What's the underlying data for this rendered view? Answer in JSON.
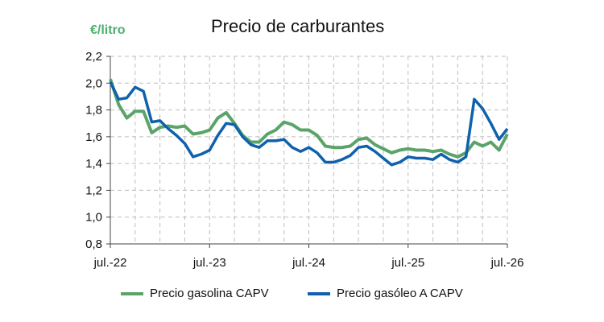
{
  "chart_data": {
    "type": "line",
    "title": "Precio de carburantes",
    "unit_label": "€/litro",
    "ylim": [
      0.8,
      2.2
    ],
    "y_ticks": [
      "0,8",
      "1,0",
      "1,2",
      "1,4",
      "1,6",
      "1,8",
      "2,0",
      "2,2"
    ],
    "x_ticks": [
      "jul.-22",
      "jul.-23",
      "jul.-24",
      "jul.-25",
      "jul.-26"
    ],
    "grid": true,
    "legend_position": "bottom",
    "x": [
      "2022-07",
      "2022-08",
      "2022-09",
      "2022-10",
      "2022-11",
      "2022-12",
      "2023-01",
      "2023-02",
      "2023-03",
      "2023-04",
      "2023-05",
      "2023-06",
      "2023-07",
      "2023-08",
      "2023-09",
      "2023-10",
      "2023-11",
      "2023-12",
      "2024-01",
      "2024-02",
      "2024-03",
      "2024-04",
      "2024-05",
      "2024-06",
      "2024-07",
      "2024-08",
      "2024-09",
      "2024-10",
      "2024-11",
      "2024-12",
      "2025-01",
      "2025-02",
      "2025-03",
      "2025-04",
      "2025-05",
      "2025-06",
      "2025-07",
      "2025-08",
      "2025-09",
      "2025-10",
      "2025-11",
      "2025-12",
      "2026-01",
      "2026-02",
      "2026-03",
      "2026-04",
      "2026-05",
      "2026-06",
      "2026-07"
    ],
    "series": [
      {
        "name": "Precio gasolina CAPV",
        "color": "#5aa469",
        "values": [
          2.03,
          1.84,
          1.74,
          1.79,
          1.79,
          1.63,
          1.67,
          1.68,
          1.67,
          1.68,
          1.62,
          1.63,
          1.65,
          1.74,
          1.78,
          1.7,
          1.61,
          1.56,
          1.56,
          1.62,
          1.65,
          1.71,
          1.69,
          1.65,
          1.65,
          1.61,
          1.53,
          1.52,
          1.52,
          1.53,
          1.58,
          1.59,
          1.54,
          1.51,
          1.48,
          1.5,
          1.51,
          1.5,
          1.5,
          1.49,
          1.5,
          1.47,
          1.45,
          1.48,
          1.56,
          1.53,
          1.56,
          1.5,
          1.62
        ]
      },
      {
        "name": "Precio gasóleo A CAPV",
        "color": "#1061ac",
        "values": [
          2.01,
          1.88,
          1.89,
          1.97,
          1.94,
          1.71,
          1.72,
          1.66,
          1.61,
          1.55,
          1.45,
          1.47,
          1.5,
          1.61,
          1.7,
          1.69,
          1.6,
          1.54,
          1.52,
          1.57,
          1.57,
          1.58,
          1.52,
          1.49,
          1.52,
          1.48,
          1.41,
          1.41,
          1.43,
          1.46,
          1.52,
          1.53,
          1.49,
          1.44,
          1.39,
          1.41,
          1.45,
          1.44,
          1.44,
          1.43,
          1.47,
          1.43,
          1.41,
          1.45,
          1.88,
          1.81,
          1.7,
          1.58,
          1.66
        ]
      }
    ]
  }
}
